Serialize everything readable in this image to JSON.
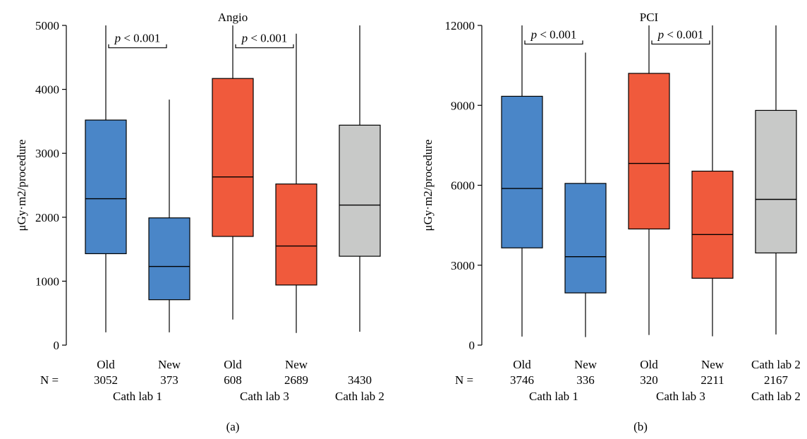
{
  "colors": {
    "blue": "#4a86c8",
    "red": "#f05a3c",
    "gray": "#c8c9c8",
    "stroke": "#000000"
  },
  "chart_data": [
    {
      "type": "box",
      "panel_label": "(a)",
      "title": "Angio",
      "ylabel": "μGy·m2/procedure",
      "ylim": [
        0,
        5000
      ],
      "yticks": [
        "0",
        "1000",
        "2000",
        "3000",
        "4000",
        "5000"
      ],
      "n_prefix": "N =",
      "categories": [
        {
          "label": "Old",
          "n": "3052",
          "color": "blue",
          "whisker_low": 200,
          "q1": 1430,
          "median": 2290,
          "q3": 3520,
          "whisker_high": 5000
        },
        {
          "label": "New",
          "n": "373",
          "color": "blue",
          "whisker_low": 200,
          "q1": 710,
          "median": 1230,
          "q3": 1990,
          "whisker_high": 3840
        },
        {
          "label": "Old",
          "n": "608",
          "color": "red",
          "whisker_low": 400,
          "q1": 1700,
          "median": 2630,
          "q3": 4170,
          "whisker_high": 5000
        },
        {
          "label": "New",
          "n": "2689",
          "color": "red",
          "whisker_low": 190,
          "q1": 940,
          "median": 1550,
          "q3": 2520,
          "whisker_high": 4870
        },
        {
          "label": "",
          "n": "3430",
          "color": "gray",
          "whisker_low": 210,
          "q1": 1390,
          "median": 2190,
          "q3": 3440,
          "whisker_high": 5000
        }
      ],
      "groups": [
        {
          "label": "Cath lab 1",
          "from": 0,
          "to": 1
        },
        {
          "label": "Cath lab 3",
          "from": 2,
          "to": 3
        },
        {
          "label": "Cath lab 2",
          "from": 4,
          "to": 4
        }
      ],
      "annotations": [
        {
          "p": "p",
          "op": " < 0.001",
          "from": 0,
          "to": 1,
          "y": 4650
        },
        {
          "p": "p",
          "op": " < 0.001",
          "from": 2,
          "to": 3,
          "y": 4650
        }
      ]
    },
    {
      "type": "box",
      "panel_label": "(b)",
      "title": "PCI",
      "ylabel": "μGy·m2/procedure",
      "ylim": [
        0,
        12000
      ],
      "yticks": [
        "0",
        "3000",
        "6000",
        "9000",
        "12000"
      ],
      "n_prefix": "N =",
      "categories": [
        {
          "label": "Old",
          "n": "3746",
          "color": "blue",
          "whisker_low": 320,
          "q1": 3650,
          "median": 5880,
          "q3": 9340,
          "whisker_high": 12000
        },
        {
          "label": "New",
          "n": "336",
          "color": "blue",
          "whisker_low": 300,
          "q1": 1960,
          "median": 3320,
          "q3": 6070,
          "whisker_high": 10980
        },
        {
          "label": "Old",
          "n": "320",
          "color": "red",
          "whisker_low": 380,
          "q1": 4360,
          "median": 6820,
          "q3": 10200,
          "whisker_high": 12000
        },
        {
          "label": "New",
          "n": "2211",
          "color": "red",
          "whisker_low": 330,
          "q1": 2510,
          "median": 4150,
          "q3": 6530,
          "whisker_high": 12000
        },
        {
          "label": "Cath lab 2",
          "n": "2167",
          "color": "gray",
          "whisker_low": 400,
          "q1": 3460,
          "median": 5470,
          "q3": 8810,
          "whisker_high": 12000
        }
      ],
      "groups": [
        {
          "label": "Cath lab 1",
          "from": 0,
          "to": 1
        },
        {
          "label": "Cath lab 3",
          "from": 2,
          "to": 3
        },
        {
          "label": "Cath lab 2",
          "from": 4,
          "to": 4
        }
      ],
      "annotations": [
        {
          "p": "p",
          "op": " < 0.001",
          "from": 0,
          "to": 1,
          "y": 11300
        },
        {
          "p": "p",
          "op": " < 0.001",
          "from": 2,
          "to": 3,
          "y": 11300
        }
      ]
    }
  ]
}
